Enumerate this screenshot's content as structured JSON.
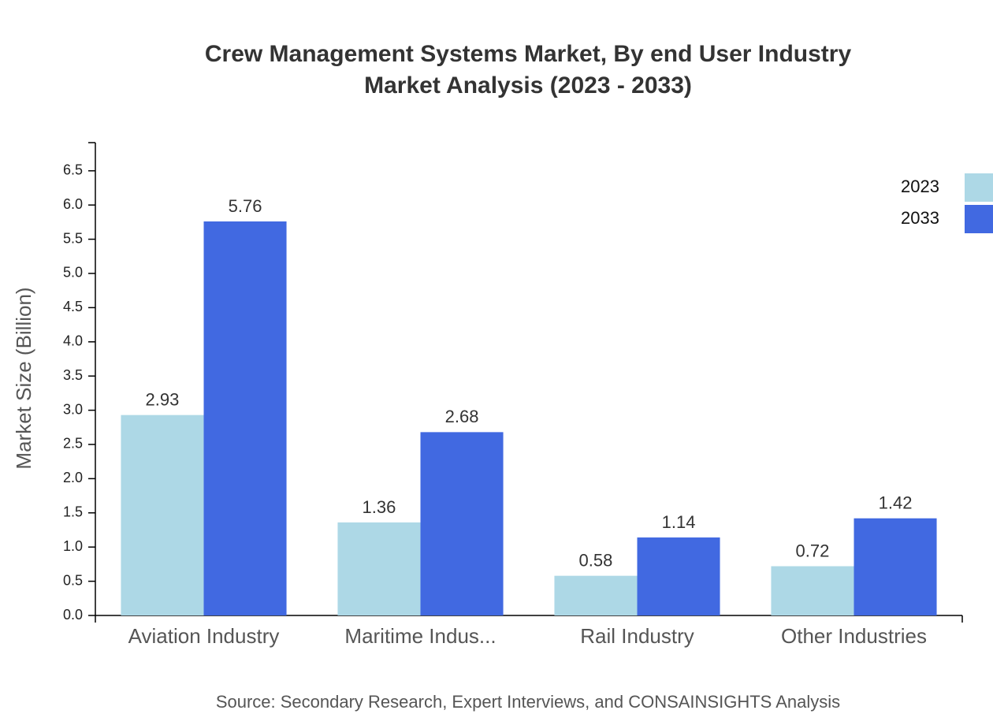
{
  "chart_data": {
    "type": "bar",
    "title": "Crew Management Systems Market, By end User Industry",
    "subtitle": "Market Analysis (2023 - 2033)",
    "y_label": "Market Size (Billion)",
    "source": "Source: Secondary Research, Expert Interviews, and CONSAINSIGHTS Analysis",
    "categories": [
      "Aviation Industry",
      "Maritime Indus...",
      "Rail Industry",
      "Other Industries"
    ],
    "series": [
      {
        "name": "2023",
        "color": "#add8e6",
        "values": [
          2.93,
          1.36,
          0.58,
          0.72
        ]
      },
      {
        "name": "2033",
        "color": "#4169e1",
        "values": [
          5.76,
          2.68,
          1.14,
          1.42
        ]
      }
    ],
    "ylim": [
      0,
      6.912
    ],
    "yticks": [
      {
        "value": 0,
        "label": "0.0"
      },
      0.5,
      {
        "value": 1,
        "label": "1.0"
      },
      1.5,
      {
        "value": 2,
        "label": "2.0"
      },
      2.5,
      {
        "value": 3,
        "label": "3.0"
      },
      3.5,
      {
        "value": 4,
        "label": "4.0"
      },
      4.5,
      {
        "value": 5,
        "label": "5.0"
      },
      5.5,
      {
        "value": 6,
        "label": "6.0"
      },
      6.5
    ],
    "grid": false,
    "legend": "top-right"
  }
}
